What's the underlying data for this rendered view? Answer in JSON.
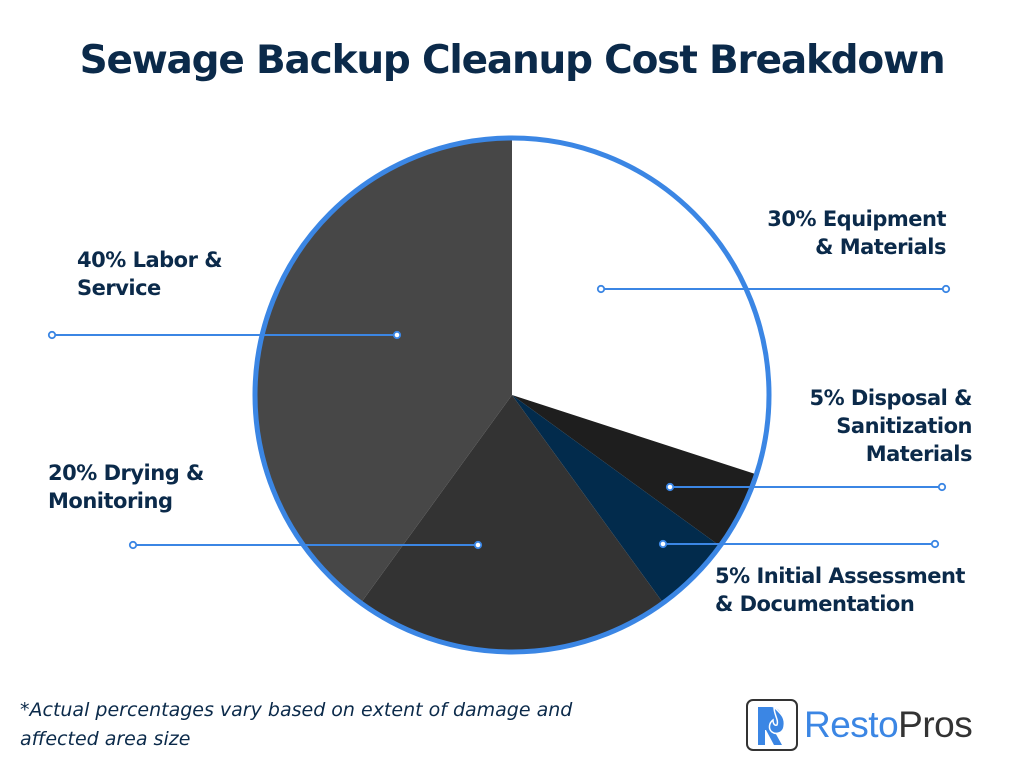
{
  "chart_data": {
    "type": "pie",
    "title": "Sewage Backup Cleanup Cost Breakdown",
    "start_angle": "12 o'clock",
    "direction": "clockwise",
    "slices": [
      {
        "label": "30% Equipment & Materials",
        "lines": [
          "30% Equipment",
          "& Materials"
        ],
        "value": 30,
        "color": "#ffffff"
      },
      {
        "label": "5% Disposal & Sanitization Materials",
        "lines": [
          "5% Disposal &",
          "Sanitization",
          "Materials"
        ],
        "value": 5,
        "color": "#1e1e1e"
      },
      {
        "label": "5% Initial Assessment & Documentation",
        "lines": [
          "5% Initial Assessment",
          "& Documentation"
        ],
        "value": 5,
        "color": "#022b4c"
      },
      {
        "label": "20% Drying & Monitoring",
        "lines": [
          "20% Drying &",
          "Monitoring"
        ],
        "value": 20,
        "color": "#333333"
      },
      {
        "label": "40% Labor & Service",
        "lines": [
          "40% Labor &",
          "Service"
        ],
        "value": 40,
        "color": "#474747"
      }
    ],
    "outline_color": "#3b86e4",
    "leader_color": "#3b86e4"
  },
  "footnote": [
    "*Actual percentages vary based on extent of damage and",
    "affected area size"
  ],
  "logo": {
    "part1": "Resto",
    "part2": "Pros"
  }
}
